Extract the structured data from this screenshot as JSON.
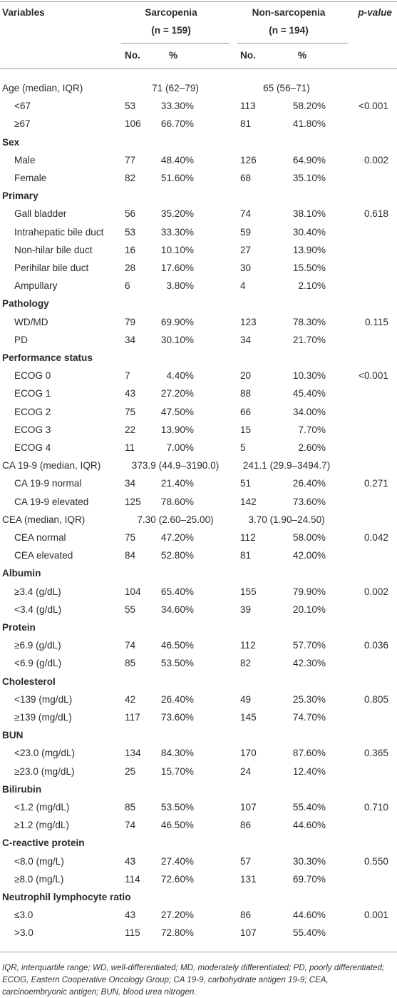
{
  "header": {
    "variables": "Variables",
    "groups": [
      {
        "name": "Sarcopenia",
        "n": "(n = 159)"
      },
      {
        "name": "Non-sarcopenia",
        "n": "(n = 194)"
      }
    ],
    "p_value": "p-value",
    "subheaders": [
      "No.",
      "%",
      "No.",
      "%"
    ]
  },
  "rows": [
    {
      "label": "Age (median, IQR)",
      "median": [
        "71 (62–79)",
        "65 (56–71)"
      ]
    },
    {
      "label": "<67",
      "cells": [
        "53",
        "33.30%",
        "113",
        "58.20%"
      ],
      "p": "<0.001"
    },
    {
      "label": "≥67",
      "cells": [
        "106",
        "66.70%",
        "81",
        "41.80%"
      ]
    },
    {
      "label": "Sex"
    },
    {
      "label": "Male",
      "cells": [
        "77",
        "48.40%",
        "126",
        "64.90%"
      ],
      "p": "0.002"
    },
    {
      "label": "Female",
      "cells": [
        "82",
        "51.60%",
        "68",
        "35.10%"
      ]
    },
    {
      "label": "Primary"
    },
    {
      "label": "Gall bladder",
      "cells": [
        "56",
        "35.20%",
        "74",
        "38.10%"
      ],
      "p": "0.618"
    },
    {
      "label": "Intrahepatic bile duct",
      "cells": [
        "53",
        "33.30%",
        "59",
        "30.40%"
      ]
    },
    {
      "label": "Non-hilar bile duct",
      "cells": [
        "16",
        "10.10%",
        "27",
        "13.90%"
      ]
    },
    {
      "label": "Perihilar bile duct",
      "cells": [
        "28",
        "17.60%",
        "30",
        "15.50%"
      ]
    },
    {
      "label": "Ampullary",
      "cells": [
        "6",
        "3.80%",
        "4",
        "2.10%"
      ]
    },
    {
      "label": "Pathology"
    },
    {
      "label": "WD/MD",
      "cells": [
        "79",
        "69.90%",
        "123",
        "78.30%"
      ],
      "p": "0.115"
    },
    {
      "label": "PD",
      "cells": [
        "34",
        "30.10%",
        "34",
        "21.70%"
      ]
    },
    {
      "label": "Performance status"
    },
    {
      "label": "ECOG 0",
      "cells": [
        "7",
        "4.40%",
        "20",
        "10.30%"
      ],
      "p": "<0.001"
    },
    {
      "label": "ECOG 1",
      "cells": [
        "43",
        "27.20%",
        "88",
        "45.40%"
      ]
    },
    {
      "label": "ECOG 2",
      "cells": [
        "75",
        "47.50%",
        "66",
        "34.00%"
      ]
    },
    {
      "label": "ECOG 3",
      "cells": [
        "22",
        "13.90%",
        "15",
        "7.70%"
      ]
    },
    {
      "label": "ECOG 4",
      "cells": [
        "11",
        "7.00%",
        "5",
        "2.60%"
      ]
    },
    {
      "label": "CA 19-9 (median, IQR)",
      "median": [
        "373.9 (44.9–3190.0)",
        "241.1 (29.9–3494.7)"
      ]
    },
    {
      "label": "CA 19-9 normal",
      "cells": [
        "34",
        "21.40%",
        "51",
        "26.40%"
      ],
      "p": "0.271"
    },
    {
      "label": "CA 19-9 elevated",
      "cells": [
        "125",
        "78.60%",
        "142",
        "73.60%"
      ]
    },
    {
      "label": "CEA (median, IQR)",
      "median": [
        "7.30 (2.60–25.00)",
        "3.70 (1.90–24.50)"
      ]
    },
    {
      "label": "CEA normal",
      "cells": [
        "75",
        "47.20%",
        "112",
        "58.00%"
      ],
      "p": "0.042"
    },
    {
      "label": "CEA elevated",
      "cells": [
        "84",
        "52.80%",
        "81",
        "42.00%"
      ]
    },
    {
      "label": "Albumin"
    },
    {
      "label": "≥3.4 (g/dL)",
      "cells": [
        "104",
        "65.40%",
        "155",
        "79.90%"
      ],
      "p": "0.002"
    },
    {
      "label": "<3.4 (g/dL)",
      "cells": [
        "55",
        "34.60%",
        "39",
        "20.10%"
      ]
    },
    {
      "label": "Protein"
    },
    {
      "label": "≥6.9 (g/dL)",
      "cells": [
        "74",
        "46.50%",
        "112",
        "57.70%"
      ],
      "p": "0.036"
    },
    {
      "label": "<6.9 (g/dL)",
      "cells": [
        "85",
        "53.50%",
        "82",
        "42.30%"
      ]
    },
    {
      "label": "Cholesterol"
    },
    {
      "label": "<139 (mg/dL)",
      "cells": [
        "42",
        "26.40%",
        "49",
        "25.30%"
      ],
      "p": "0.805"
    },
    {
      "label": "≥139 (mg/dL)",
      "cells": [
        "117",
        "73.60%",
        "145",
        "74.70%"
      ]
    },
    {
      "label": "BUN"
    },
    {
      "label": "<23.0 (mg/dL)",
      "cells": [
        "134",
        "84.30%",
        "170",
        "87.60%"
      ],
      "p": "0.365"
    },
    {
      "label": "≥23.0 (mg/dL)",
      "cells": [
        "25",
        "15.70%",
        "24",
        "12.40%"
      ]
    },
    {
      "label": "Bilirubin"
    },
    {
      "label": "<1.2 (mg/dL)",
      "cells": [
        "85",
        "53.50%",
        "107",
        "55.40%"
      ],
      "p": "0.710"
    },
    {
      "label": "≥1.2 (mg/dL)",
      "cells": [
        "74",
        "46.50%",
        "86",
        "44.60%"
      ]
    },
    {
      "label": "C-reactive protein"
    },
    {
      "label": "<8.0 (mg/L)",
      "cells": [
        "43",
        "27.40%",
        "57",
        "30.30%"
      ],
      "p": "0.550"
    },
    {
      "label": "≥8.0 (mg/L)",
      "cells": [
        "114",
        "72.60%",
        "131",
        "69.70%"
      ]
    },
    {
      "label": "Neutrophil lymphocyte ratio"
    },
    {
      "label": "≤3.0",
      "cells": [
        "43",
        "27.20%",
        "86",
        "44.60%"
      ],
      "p": "0.001"
    },
    {
      "label": ">3.0",
      "cells": [
        "115",
        "72.80%",
        "107",
        "55.40%"
      ]
    }
  ],
  "footnote": "IQR, interquartile range; WD, well-differentiated; MD, moderately differentiated; PD, poorly differentiated; ECOG, Eastern Cooperative Oncology Group; CA 19-9, carbohydrate antigen 19-9; CEA, carcinoembryonic antigen; BUN, blood urea nitrogen."
}
